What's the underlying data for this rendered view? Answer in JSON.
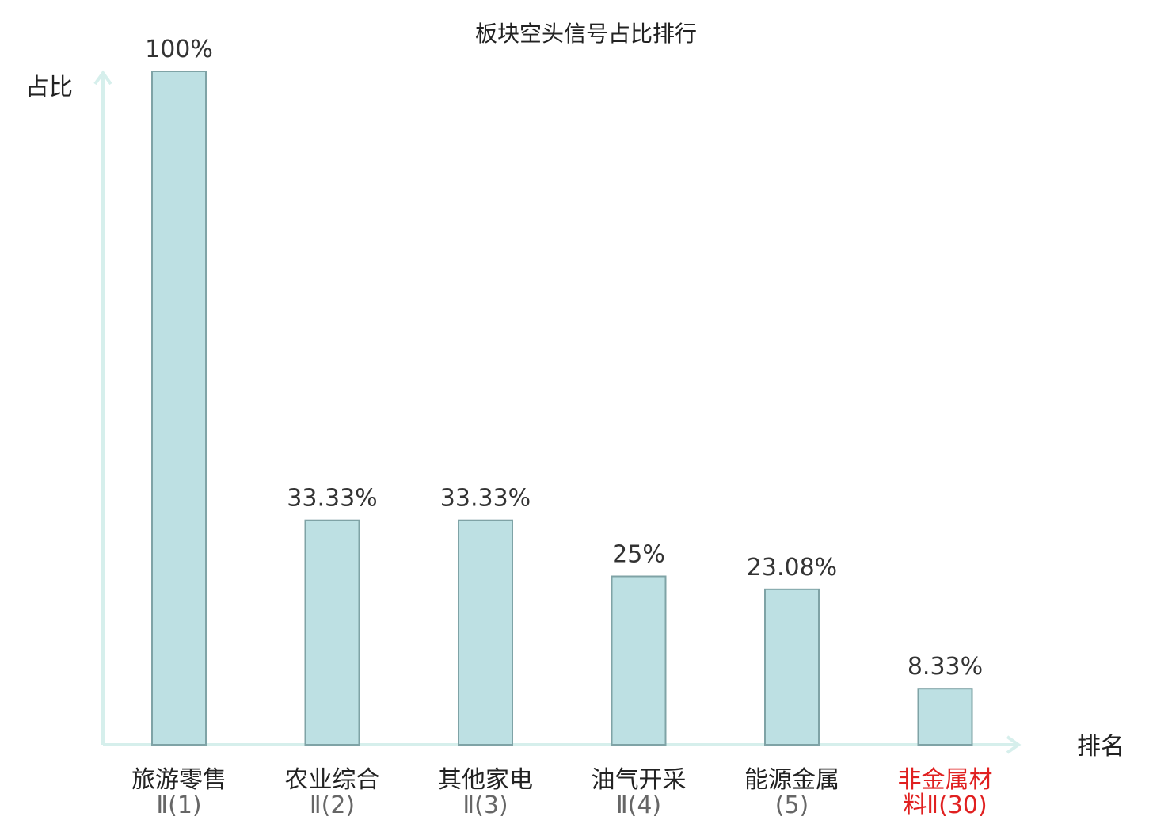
{
  "chart_data": {
    "type": "bar",
    "title": "板块空头信号占比排行",
    "ylabel": "占比",
    "xlabel": "排名",
    "ylim": [
      0,
      100
    ],
    "categories": [
      {
        "line1": "旅游零售",
        "line2": "Ⅱ(1)",
        "highlight": false
      },
      {
        "line1": "农业综合",
        "line2": "Ⅱ(2)",
        "highlight": false
      },
      {
        "line1": "其他家电",
        "line2": "Ⅱ(3)",
        "highlight": false
      },
      {
        "line1": "油气开采",
        "line2": "Ⅱ(4)",
        "highlight": false
      },
      {
        "line1": "能源金属",
        "line2": "(5)",
        "highlight": false
      },
      {
        "line1": "非金属材",
        "line2": "料Ⅱ(30)",
        "highlight": true
      }
    ],
    "values": [
      100,
      33.33,
      33.33,
      25,
      23.08,
      8.33
    ],
    "value_labels": [
      "100%",
      "33.33%",
      "33.33%",
      "25%",
      "23.08%",
      "8.33%"
    ],
    "grid": false,
    "colors": {
      "bar_fill": "#bde0e3",
      "bar_stroke": "#7fa3a6",
      "axis": "#d6efec",
      "highlight": "#e02020"
    }
  }
}
